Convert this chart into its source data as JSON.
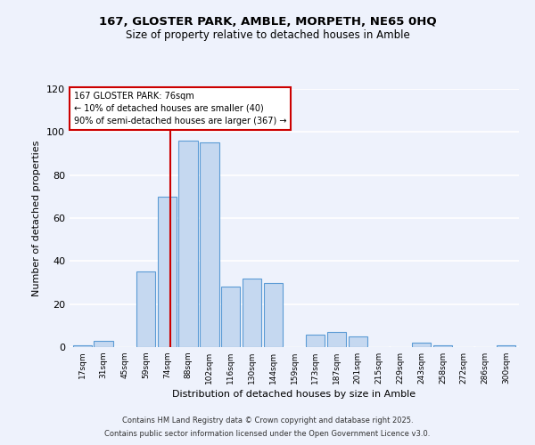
{
  "title1": "167, GLOSTER PARK, AMBLE, MORPETH, NE65 0HQ",
  "title2": "Size of property relative to detached houses in Amble",
  "xlabel": "Distribution of detached houses by size in Amble",
  "ylabel": "Number of detached properties",
  "bin_labels": [
    "17sqm",
    "31sqm",
    "45sqm",
    "59sqm",
    "74sqm",
    "88sqm",
    "102sqm",
    "116sqm",
    "130sqm",
    "144sqm",
    "159sqm",
    "173sqm",
    "187sqm",
    "201sqm",
    "215sqm",
    "229sqm",
    "243sqm",
    "258sqm",
    "272sqm",
    "286sqm",
    "300sqm"
  ],
  "bar_heights": [
    1,
    3,
    0,
    35,
    70,
    96,
    95,
    28,
    32,
    30,
    0,
    6,
    7,
    5,
    0,
    0,
    2,
    1,
    0,
    0,
    1
  ],
  "bar_color": "#c5d8f0",
  "bar_edge_color": "#5b9bd5",
  "property_line_index": 4.14,
  "annotation_text": "167 GLOSTER PARK: 76sqm\n← 10% of detached houses are smaller (40)\n90% of semi-detached houses are larger (367) →",
  "annotation_box_color": "#ffffff",
  "annotation_box_edge_color": "#cc0000",
  "property_line_color": "#cc0000",
  "ylim": [
    0,
    120
  ],
  "yticks": [
    0,
    20,
    40,
    60,
    80,
    100,
    120
  ],
  "background_color": "#eef2fc",
  "grid_color": "#ffffff",
  "footer1": "Contains HM Land Registry data © Crown copyright and database right 2025.",
  "footer2": "Contains public sector information licensed under the Open Government Licence v3.0."
}
